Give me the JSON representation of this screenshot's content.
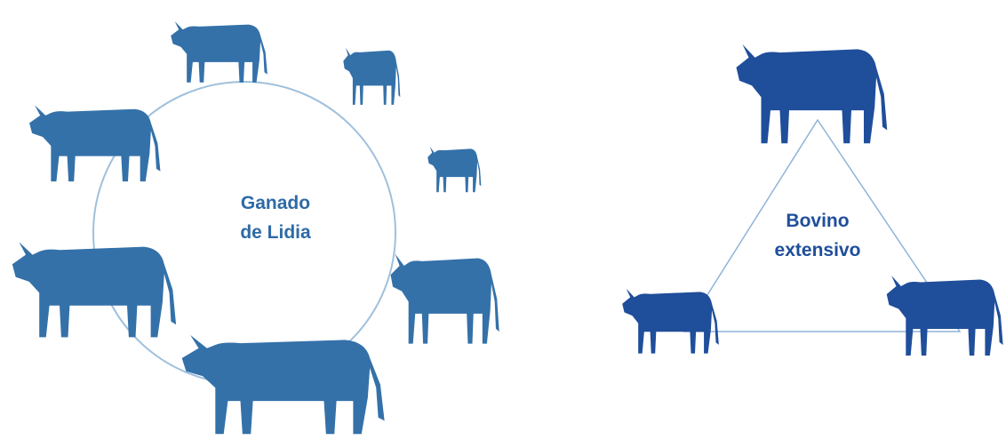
{
  "cycle": {
    "label_lines": [
      "Ganado",
      "de Lidia"
    ]
  },
  "triangle": {
    "label_lines": [
      "Bovino",
      "extensivo"
    ]
  }
}
